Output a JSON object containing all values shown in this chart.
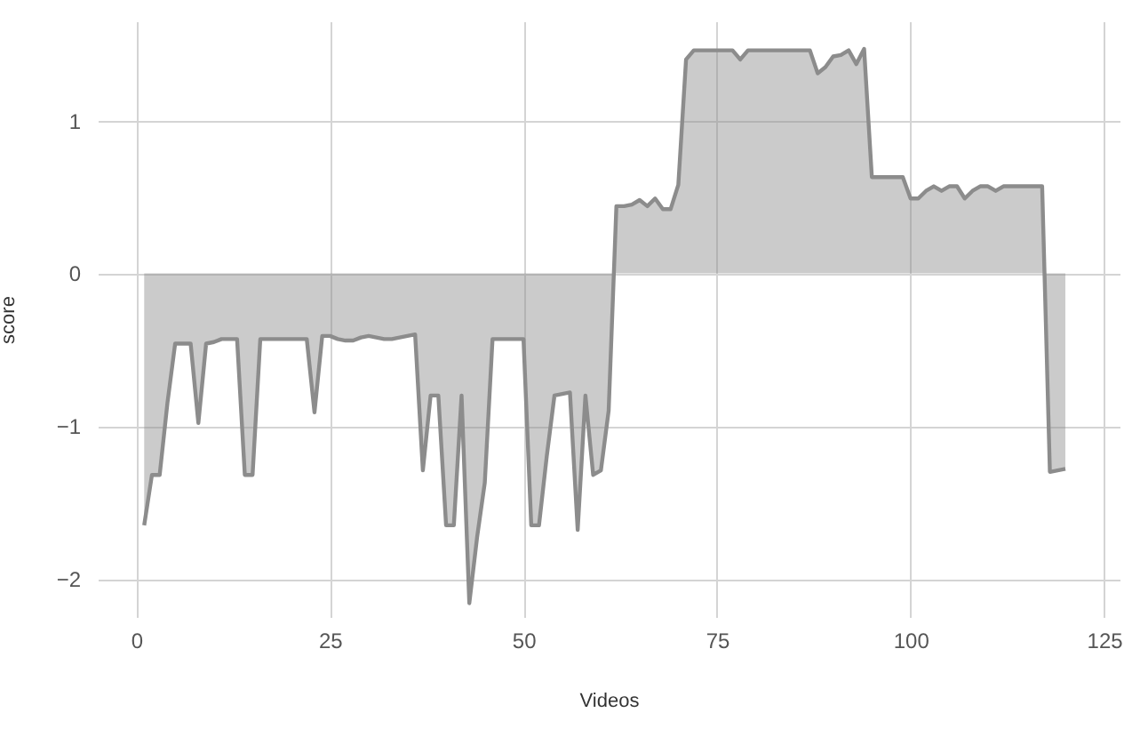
{
  "chart_data": {
    "type": "area",
    "xlabel": "Videos",
    "ylabel": "score",
    "x": [
      1,
      2,
      3,
      4,
      5,
      6,
      7,
      8,
      9,
      10,
      11,
      12,
      13,
      14,
      15,
      16,
      17,
      18,
      19,
      20,
      21,
      22,
      23,
      24,
      25,
      26,
      27,
      28,
      29,
      30,
      31,
      32,
      33,
      34,
      35,
      36,
      37,
      38,
      39,
      40,
      41,
      42,
      43,
      44,
      45,
      46,
      47,
      48,
      49,
      50,
      51,
      52,
      53,
      54,
      55,
      56,
      57,
      58,
      59,
      60,
      61,
      62,
      63,
      64,
      65,
      66,
      67,
      68,
      69,
      70,
      71,
      72,
      73,
      74,
      75,
      76,
      77,
      78,
      79,
      80,
      81,
      82,
      83,
      84,
      85,
      86,
      87,
      88,
      89,
      90,
      91,
      92,
      93,
      94,
      95,
      96,
      97,
      98,
      99,
      100,
      101,
      102,
      103,
      104,
      105,
      106,
      107,
      108,
      109,
      110,
      111,
      112,
      113,
      114,
      115,
      116,
      117,
      118,
      119,
      120
    ],
    "series": [
      {
        "color": "#8c8c8c",
        "values": [
          -1.65,
          -1.32,
          -1.32,
          -0.85,
          -0.46,
          -0.46,
          -0.46,
          -0.98,
          -0.46,
          -0.45,
          -0.43,
          -0.43,
          -0.43,
          -1.32,
          -1.32,
          -0.43,
          -0.43,
          -0.43,
          -0.43,
          -0.43,
          -0.43,
          -0.43,
          -0.91,
          -0.41,
          -0.41,
          -0.43,
          -0.44,
          -0.44,
          -0.42,
          -0.41,
          -0.42,
          -0.43,
          -0.43,
          -0.42,
          -0.41,
          -0.4,
          -1.29,
          -0.8,
          -0.8,
          -1.65,
          -1.65,
          -0.8,
          -2.16,
          -1.73,
          -1.37,
          -0.43,
          -0.43,
          -0.43,
          -0.43,
          -0.43,
          -1.65,
          -1.65,
          -1.2,
          -0.8,
          -0.79,
          -0.78,
          -1.68,
          -0.8,
          -1.32,
          -1.29,
          -0.9,
          0.44,
          0.44,
          0.45,
          0.48,
          0.44,
          0.49,
          0.42,
          0.42,
          0.58,
          1.4,
          1.46,
          1.46,
          1.46,
          1.46,
          1.46,
          1.46,
          1.4,
          1.46,
          1.46,
          1.46,
          1.46,
          1.46,
          1.46,
          1.46,
          1.46,
          1.46,
          1.31,
          1.35,
          1.42,
          1.43,
          1.46,
          1.37,
          1.47,
          0.63,
          0.63,
          0.63,
          0.63,
          0.63,
          0.49,
          0.49,
          0.54,
          0.57,
          0.54,
          0.57,
          0.57,
          0.49,
          0.54,
          0.57,
          0.57,
          0.54,
          0.57,
          0.57,
          0.57,
          0.57,
          0.57,
          0.57,
          -1.3,
          -1.29,
          -1.28
        ]
      }
    ],
    "xlim": [
      -5,
      127
    ],
    "ylim": [
      -2.25,
      1.65
    ],
    "xticks": [
      0,
      25,
      50,
      75,
      100,
      125
    ],
    "yticks": [
      -2,
      -1,
      0,
      1
    ],
    "grid": true
  }
}
